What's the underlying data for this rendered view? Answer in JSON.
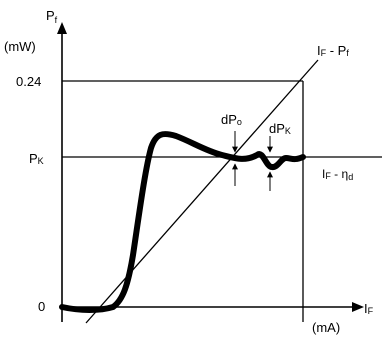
{
  "y_axis": {
    "symbol": "P",
    "subscript": "f",
    "unit": "(mW)"
  },
  "x_axis": {
    "symbol": "I",
    "subscript": "F",
    "unit": "(mA)"
  },
  "ticks": {
    "y_top": "0.24",
    "y_pk": "P",
    "y_pk_sub": "K",
    "origin": "0"
  },
  "curves": {
    "line_label": {
      "i": "I",
      "i_sub": "F",
      "mid": " - P",
      "p_sub": "f"
    },
    "kink_label": {
      "i": "I",
      "i_sub": "F",
      "mid": " - ",
      "eta": "η",
      "eta_sub": "d"
    }
  },
  "annotations": {
    "dpo": {
      "main": "dP",
      "sub": "o"
    },
    "dpk": {
      "main": "dP",
      "sub": "K"
    }
  }
}
